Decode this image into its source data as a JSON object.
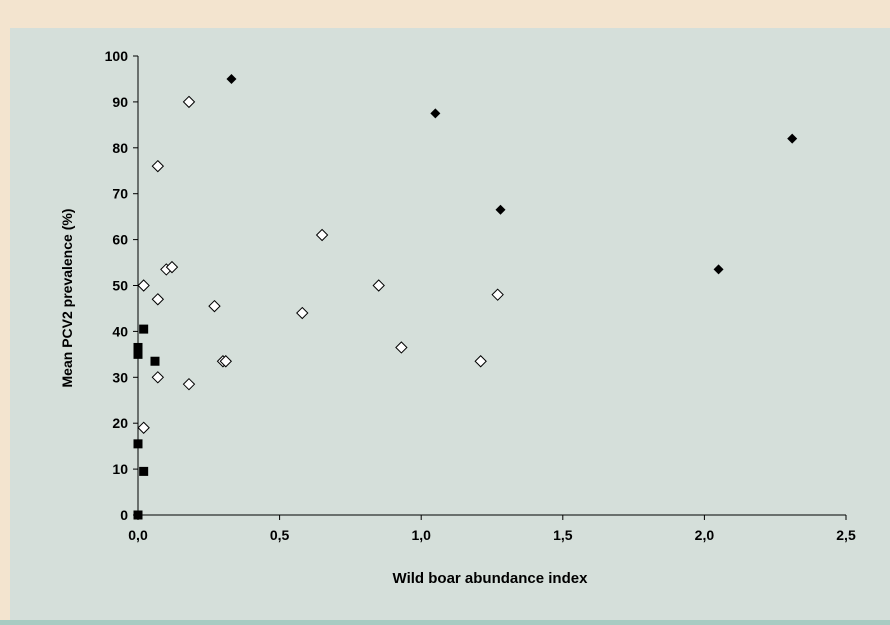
{
  "colors": {
    "frame": "#f3e4cf",
    "panel": "#d5dfda",
    "strip": "#a8cbc2",
    "axis": "#000000",
    "marker": "#000000",
    "marker_hollow_fill": "#ffffff"
  },
  "chart_data": {
    "type": "scatter",
    "title": "",
    "xlabel": "Wild boar abundance index",
    "ylabel": "Mean PCV2 prevalence (%)",
    "xlim": [
      0,
      2.5
    ],
    "ylim": [
      0,
      100
    ],
    "xticks": [
      0,
      0.5,
      1.0,
      1.5,
      2.0,
      2.5
    ],
    "xtick_labels": [
      "0,0",
      "0,5",
      "1,0",
      "1,5",
      "2,0",
      "2,5"
    ],
    "yticks": [
      0,
      10,
      20,
      30,
      40,
      50,
      60,
      70,
      80,
      90,
      100
    ],
    "ytick_labels": [
      "0",
      "10",
      "20",
      "30",
      "40",
      "50",
      "60",
      "70",
      "80",
      "90",
      "100"
    ],
    "grid": false,
    "legend": "none",
    "series": [
      {
        "marker": "filled-diamond",
        "points": [
          {
            "x": 0.33,
            "y": 95
          },
          {
            "x": 1.05,
            "y": 87.5
          },
          {
            "x": 1.28,
            "y": 66.5
          },
          {
            "x": 2.05,
            "y": 53.5
          },
          {
            "x": 2.31,
            "y": 82
          }
        ]
      },
      {
        "marker": "hollow-diamond",
        "points": [
          {
            "x": 0.18,
            "y": 90
          },
          {
            "x": 0.07,
            "y": 76
          },
          {
            "x": 0.1,
            "y": 53.5
          },
          {
            "x": 0.12,
            "y": 54
          },
          {
            "x": 0.02,
            "y": 50
          },
          {
            "x": 0.07,
            "y": 47
          },
          {
            "x": 0.27,
            "y": 45.5
          },
          {
            "x": 0.3,
            "y": 33.5
          },
          {
            "x": 0.31,
            "y": 33.5
          },
          {
            "x": 0.07,
            "y": 30
          },
          {
            "x": 0.18,
            "y": 28.5
          },
          {
            "x": 0.02,
            "y": 19
          },
          {
            "x": 0.58,
            "y": 44
          },
          {
            "x": 0.65,
            "y": 61
          },
          {
            "x": 0.85,
            "y": 50
          },
          {
            "x": 0.93,
            "y": 36.5
          },
          {
            "x": 1.21,
            "y": 33.5
          },
          {
            "x": 1.27,
            "y": 48
          }
        ]
      },
      {
        "marker": "filled-square",
        "points": [
          {
            "x": 0.02,
            "y": 40.5
          },
          {
            "x": 0.0,
            "y": 36.5
          },
          {
            "x": 0.0,
            "y": 35
          },
          {
            "x": 0.06,
            "y": 33.5
          },
          {
            "x": 0.0,
            "y": 15.5
          },
          {
            "x": 0.02,
            "y": 9.5
          },
          {
            "x": 0.0,
            "y": 0
          }
        ]
      }
    ]
  }
}
